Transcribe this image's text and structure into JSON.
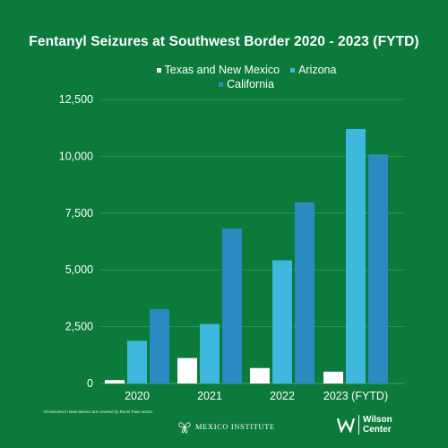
{
  "chart_data": {
    "type": "bar",
    "title": "Fentanyl Seizures at Southwest Border 2020 - 2023 (FYTD)",
    "categories": [
      "2020",
      "2021",
      "2022",
      "2023 (FYTD)"
    ],
    "series": [
      {
        "name": "Texas and New Mexico",
        "color": "#ffffff",
        "values": [
          150,
          1120,
          680,
          520
        ]
      },
      {
        "name": "Arizona",
        "color": "#3fb8de",
        "values": [
          1880,
          2620,
          5420,
          11200
        ]
      },
      {
        "name": "California",
        "color": "#2b8ac2",
        "values": [
          3270,
          6820,
          7970,
          10080
        ]
      }
    ],
    "ylim": [
      0,
      12500
    ],
    "yticks": [
      0,
      2500,
      5000,
      7500,
      10000,
      12500
    ],
    "ytick_labels": [
      "0",
      "2,500",
      "5,000",
      "7,500",
      "10,000",
      "12,500"
    ],
    "grid": true,
    "legend_position": "top"
  },
  "footnote": "All seizures in New Mexico are covered by the El Paso sector",
  "logos": {
    "mexico_institute": "MEXICO INSTITUTE",
    "wilson_line1": "Wilson",
    "wilson_line2": "Center"
  },
  "colors": {
    "background": "#0b7a3b",
    "grid": "#3a9a5e"
  }
}
